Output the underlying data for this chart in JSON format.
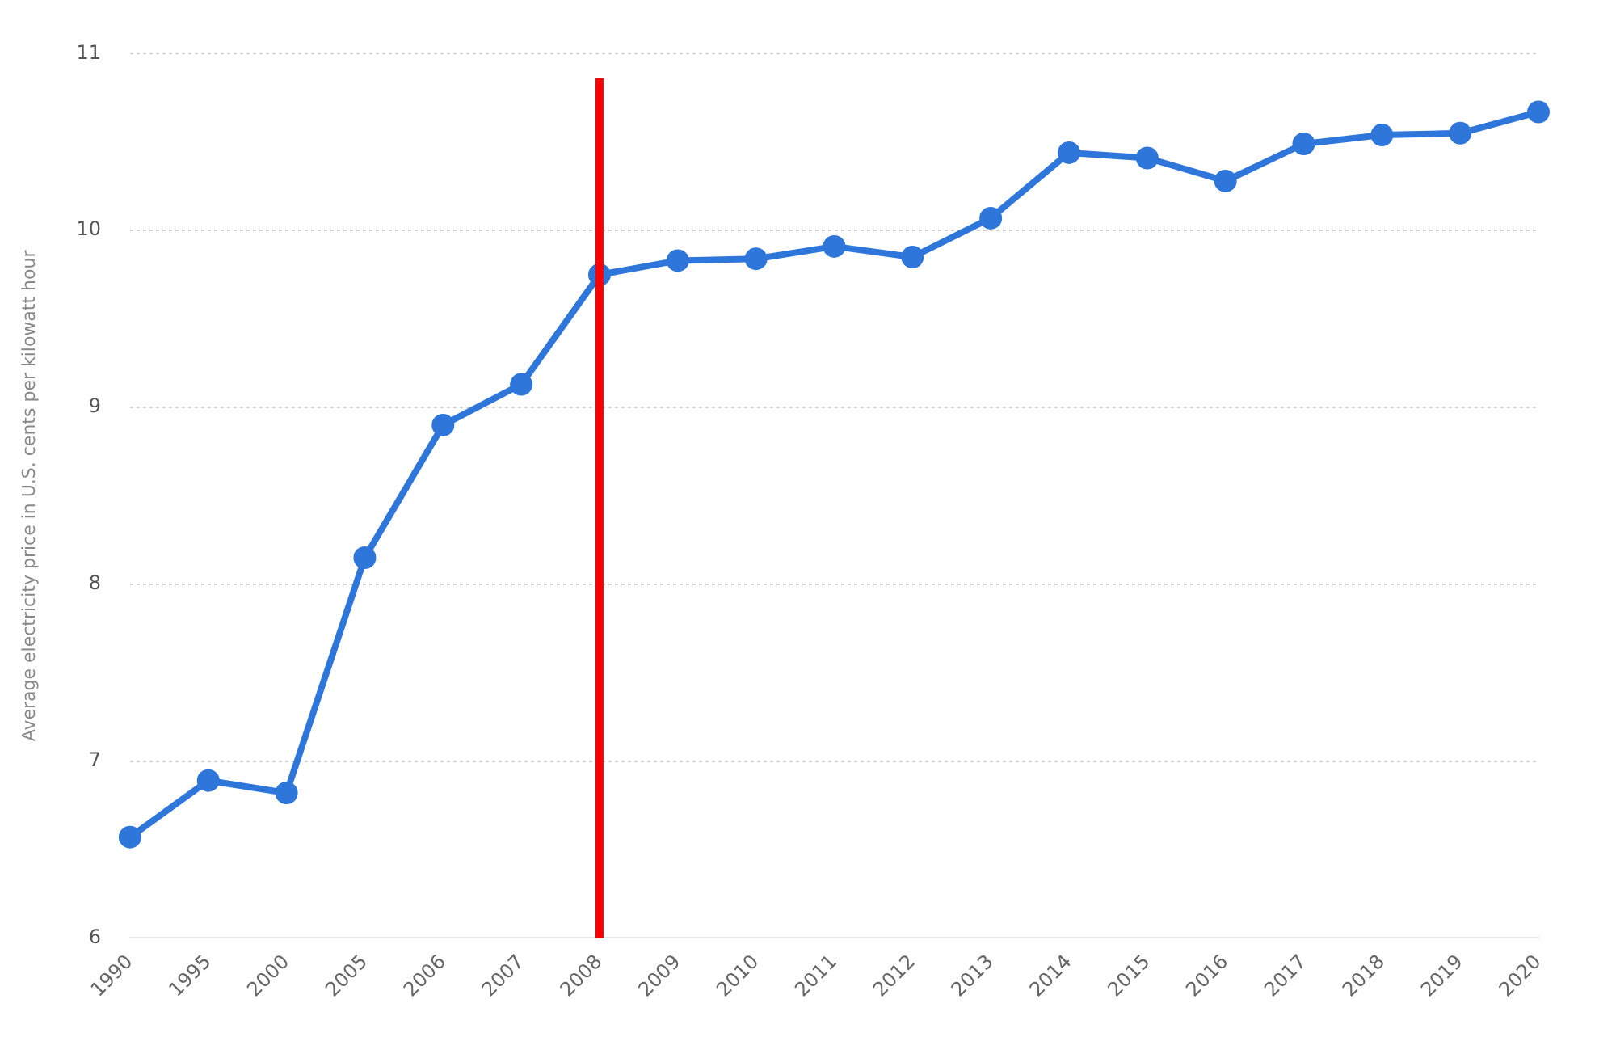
{
  "chart_data": {
    "type": "line",
    "ylabel": "Average electricity price in U.S. cents per kilowatt hour",
    "categories": [
      "1990",
      "1995",
      "2000",
      "2005",
      "2006",
      "2007",
      "2008",
      "2009",
      "2010",
      "2011",
      "2012",
      "2013",
      "2014",
      "2015",
      "2016",
      "2017",
      "2018",
      "2019",
      "2020"
    ],
    "series": [
      {
        "color": "#2f76db",
        "values": [
          6.57,
          6.89,
          6.82,
          8.15,
          8.9,
          9.13,
          9.75,
          9.83,
          9.84,
          9.91,
          9.85,
          10.07,
          10.44,
          10.41,
          10.28,
          10.49,
          10.54,
          10.55,
          10.67
        ]
      }
    ],
    "ylim": [
      6,
      11
    ],
    "yticks": [
      6,
      7,
      8,
      9,
      10,
      11
    ],
    "grid": "y",
    "legend": false,
    "marker": "circle",
    "line_style": "solid",
    "ref_lines": [
      {
        "axis": "x",
        "value": "2008",
        "color": "#ff0000"
      }
    ]
  }
}
